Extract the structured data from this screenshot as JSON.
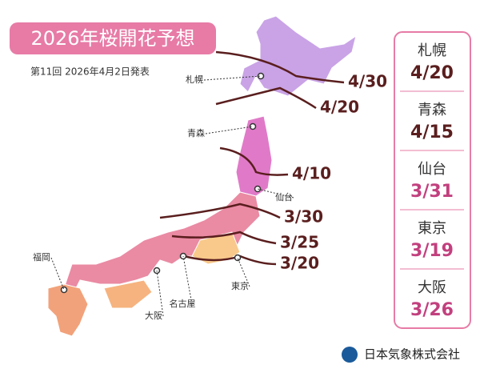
{
  "title": "2026年桜開花予想",
  "subtitle": "第11回 2026年4月2日発表",
  "isolines": [
    "4/30",
    "4/20",
    "4/10",
    "3/30",
    "3/25",
    "3/20"
  ],
  "map_cities": [
    "札幌",
    "青森",
    "仙台",
    "東京",
    "名古屋",
    "大阪",
    "福岡"
  ],
  "panel": [
    {
      "city": "札幌",
      "date": "4/20",
      "color": "#5a1e1e"
    },
    {
      "city": "青森",
      "date": "4/15",
      "color": "#5a1e1e"
    },
    {
      "city": "仙台",
      "date": "3/31",
      "color": "#c2407e"
    },
    {
      "city": "東京",
      "date": "3/19",
      "color": "#c2407e"
    },
    {
      "city": "大阪",
      "date": "3/26",
      "color": "#c2407e"
    }
  ],
  "company": "日本気象株式会社"
}
